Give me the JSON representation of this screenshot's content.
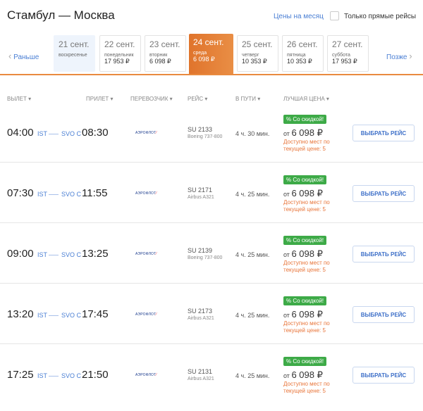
{
  "header": {
    "title": "Стамбул — Москва",
    "month_prices": "Цены на месяц",
    "direct_only": "Только прямые рейсы"
  },
  "nav": {
    "prev": "Раньше",
    "next": "Позже"
  },
  "dates": [
    {
      "date": "21 сент.",
      "weekday": "воскресенье",
      "price": ""
    },
    {
      "date": "22 сент.",
      "weekday": "понедельник",
      "price": "17 953 ₽"
    },
    {
      "date": "23 сент.",
      "weekday": "вторник",
      "price": "6 098 ₽"
    },
    {
      "date": "24 сент.",
      "weekday": "среда",
      "price": "6 098 ₽"
    },
    {
      "date": "25 сент.",
      "weekday": "четверг",
      "price": "10 353 ₽"
    },
    {
      "date": "26 сент.",
      "weekday": "пятница",
      "price": "10 353 ₽"
    },
    {
      "date": "27 сент.",
      "weekday": "суббота",
      "price": "17 953 ₽"
    }
  ],
  "selected_date_index": 3,
  "colors": {
    "accent": "#e0742c",
    "link": "#4a7fd4",
    "discount": "#3daa47"
  },
  "columns": [
    "ВЫЛЕТ ▾",
    "ПРИЛЕТ ▾",
    "ПЕРЕВОЗЧИК ▾",
    "РЕЙС ▾",
    "В ПУТИ ▾",
    "ЛУЧШАЯ ЦЕНА ▾"
  ],
  "flights": [
    {
      "dep": "04:00",
      "from": "IST",
      "to": "SVO C",
      "arr": "08:30",
      "carrier": "АЭРОФЛОТ",
      "flight": "SU 2133",
      "aircraft": "Boeing 737-800",
      "duration": "4 ч. 30 мин.",
      "badge": "% Со скидкой!",
      "price_prefix": "от",
      "price": "6 098 ₽",
      "avail1": "Доступно мест по",
      "avail2": "текущей цене: 5",
      "button": "ВЫБРАТЬ РЕЙС"
    },
    {
      "dep": "07:30",
      "from": "IST",
      "to": "SVO C",
      "arr": "11:55",
      "carrier": "АЭРОФЛОТ",
      "flight": "SU 2171",
      "aircraft": "Airbus A321",
      "duration": "4 ч. 25 мин.",
      "badge": "% Со скидкой!",
      "price_prefix": "от",
      "price": "6 098 ₽",
      "avail1": "Доступно мест по",
      "avail2": "текущей цене: 5",
      "button": "ВЫБРАТЬ РЕЙС"
    },
    {
      "dep": "09:00",
      "from": "IST",
      "to": "SVO C",
      "arr": "13:25",
      "carrier": "АЭРОФЛОТ",
      "flight": "SU 2139",
      "aircraft": "Boeing 737-800",
      "duration": "4 ч. 25 мин.",
      "badge": "% Со скидкой!",
      "price_prefix": "от",
      "price": "6 098 ₽",
      "avail1": "Доступно мест по",
      "avail2": "текущей цене: 5",
      "button": "ВЫБРАТЬ РЕЙС"
    },
    {
      "dep": "13:20",
      "from": "IST",
      "to": "SVO C",
      "arr": "17:45",
      "carrier": "АЭРОФЛОТ",
      "flight": "SU 2173",
      "aircraft": "Airbus A321",
      "duration": "4 ч. 25 мин.",
      "badge": "% Со скидкой!",
      "price_prefix": "от",
      "price": "6 098 ₽",
      "avail1": "Доступно мест по",
      "avail2": "текущей цене: 5",
      "button": "ВЫБРАТЬ РЕЙС"
    },
    {
      "dep": "17:25",
      "from": "IST",
      "to": "SVO C",
      "arr": "21:50",
      "carrier": "АЭРОФЛОТ",
      "flight": "SU 2131",
      "aircraft": "Airbus A321",
      "duration": "4 ч. 25 мин.",
      "badge": "% Со скидкой!",
      "price_prefix": "от",
      "price": "6 098 ₽",
      "avail1": "Доступно мест по",
      "avail2": "текущей цене: 5",
      "button": "ВЫБРАТЬ РЕЙС"
    }
  ]
}
